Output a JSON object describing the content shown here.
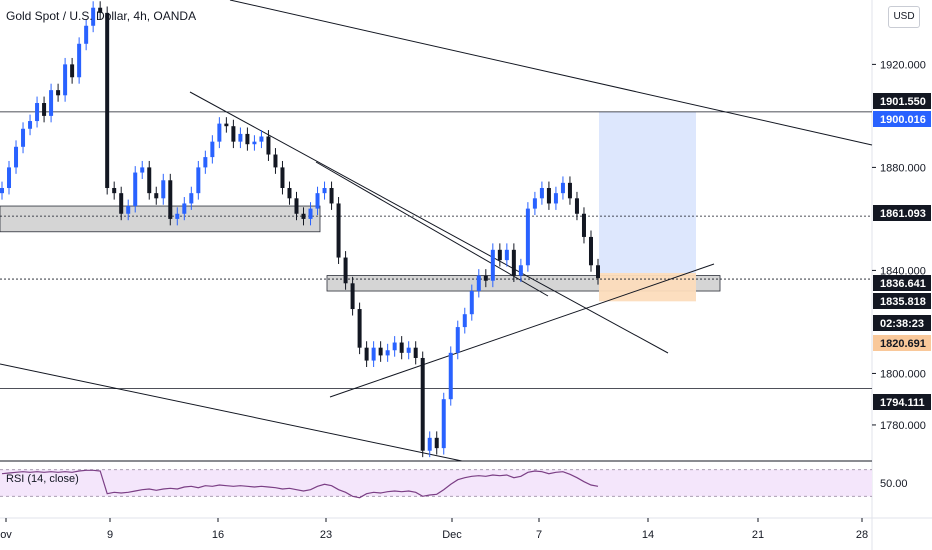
{
  "header": {
    "title": "Gold Spot / U.S. Dollar, 4h, OANDA",
    "currency_button": "USD"
  },
  "rsi": {
    "label": "RSI (14, close)",
    "level_label": "50.00",
    "level": 50,
    "upper": 70,
    "lower": 30
  },
  "colors": {
    "candle_up": "#2962ff",
    "candle_down": "#131722",
    "target_zone": "#dbe6fd",
    "stop_zone": "#fcdcbc",
    "zone_gray": "#d1d1d1",
    "rsi_band": "#f4e6fb",
    "rsi_line": "#7b3f85",
    "axis_tag_dark": "#131722",
    "axis_tag_blue": "#2962ff",
    "axis_tag_orange": "#f9c89a"
  },
  "chart_data": {
    "type": "candlestick",
    "title": "Gold Spot / U.S. Dollar, 4h, OANDA",
    "ylim": [
      1766,
      1945
    ],
    "y_ticks": [
      "1920.000",
      "1880.000",
      "1840.000",
      "1800.000",
      "1780.000"
    ],
    "y_tick_values": [
      1920,
      1880,
      1840,
      1800,
      1780
    ],
    "x_ticks": [
      "ov",
      "9",
      "16",
      "23",
      "Dec",
      "7",
      "14",
      "21",
      "28"
    ],
    "price_tags": [
      {
        "label": "1901.550",
        "value": 1901.55,
        "style": "dark"
      },
      {
        "label": "1900.016",
        "value": 1900.016,
        "style": "blue"
      },
      {
        "label": "1861.093",
        "value": 1861.093,
        "style": "dark"
      },
      {
        "label": "1836.641",
        "value": 1836.641,
        "style": "dark"
      },
      {
        "label": "1835.818",
        "value": 1835.818,
        "style": "dark"
      },
      {
        "label": "02:38:23",
        "value": 1828.9,
        "style": "dark"
      },
      {
        "label": "1820.691",
        "value": 1820.691,
        "style": "orange"
      },
      {
        "label": "1794.111",
        "value": 1794.111,
        "style": "dark"
      }
    ],
    "horizontal_lines": [
      1901.55,
      1861.093,
      1836.641,
      1794.111
    ],
    "close_series": [
      1872,
      1880,
      1888,
      1895,
      1898,
      1905,
      1900,
      1910,
      1908,
      1920,
      1915,
      1928,
      1935,
      1942,
      1940,
      1872,
      1870,
      1862,
      1865,
      1878,
      1880,
      1870,
      1868,
      1875,
      1860,
      1862,
      1866,
      1870,
      1880,
      1884,
      1890,
      1897,
      1896,
      1890,
      1893,
      1889,
      1890,
      1892,
      1885,
      1880,
      1872,
      1868,
      1862,
      1860,
      1864,
      1870,
      1872,
      1866,
      1845,
      1835,
      1825,
      1810,
      1805,
      1810,
      1807,
      1809,
      1812,
      1808,
      1810,
      1806,
      1770,
      1775,
      1771,
      1790,
      1808,
      1818,
      1823,
      1832,
      1838,
      1836,
      1848,
      1844,
      1848,
      1838,
      1842,
      1864,
      1868,
      1872,
      1866,
      1870,
      1874,
      1868,
      1862,
      1853,
      1842,
      1837
    ],
    "rsi_series": [
      64,
      65,
      66,
      67,
      66,
      67,
      66,
      67,
      66,
      67,
      66,
      68,
      69,
      69,
      68,
      34,
      36,
      35,
      36,
      38,
      40,
      41,
      39,
      41,
      42,
      41,
      44,
      45,
      43,
      46,
      45,
      47,
      46,
      45,
      46,
      45,
      44,
      45,
      44,
      43,
      41,
      42,
      40,
      38,
      40,
      45,
      48,
      46,
      40,
      36,
      30,
      28,
      34,
      36,
      35,
      37,
      38,
      37,
      38,
      36,
      30,
      32,
      33,
      40,
      48,
      55,
      58,
      60,
      61,
      60,
      62,
      61,
      62,
      58,
      60,
      66,
      68,
      67,
      64,
      66,
      67,
      63,
      58,
      52,
      47,
      45
    ],
    "zones": [
      {
        "name": "support-resistance",
        "from": 1855,
        "to": 1865
      },
      {
        "name": "support-resistance",
        "from": 1832,
        "to": 1838
      },
      {
        "name": "target",
        "from": 1839,
        "to": 1901.55
      },
      {
        "name": "stop",
        "from": 1828,
        "to": 1839
      }
    ]
  }
}
